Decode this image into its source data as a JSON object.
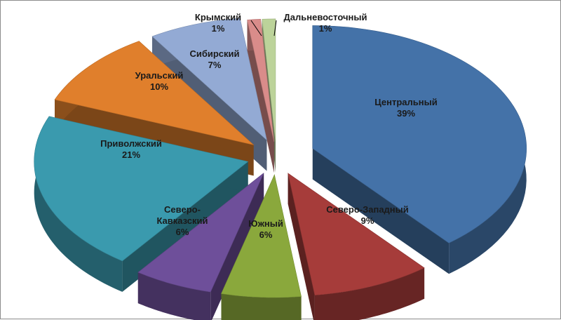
{
  "chart_data": {
    "type": "pie",
    "style": "3d-exploded",
    "title": "",
    "categories": [
      "Центральный",
      "Северо-Западный",
      "Южный",
      "Северо-Кавказский",
      "Приволжский",
      "Уральский",
      "Сибирский",
      "Крымский",
      "Дальневосточный"
    ],
    "values": [
      39,
      9,
      6,
      6,
      21,
      10,
      7,
      1,
      1
    ],
    "value_labels": [
      "39%",
      "9%",
      "6%",
      "6%",
      "21%",
      "10%",
      "7%",
      "1%",
      "1%"
    ],
    "label_lines": [
      [
        "Центральный",
        "39%"
      ],
      [
        "Северо-Западный",
        "9%"
      ],
      [
        "Южный",
        "6%"
      ],
      [
        "Северо-",
        "Кавказский",
        "6%"
      ],
      [
        "Приволжский",
        "21%"
      ],
      [
        "Уральский",
        "10%"
      ],
      [
        "Сибирский",
        "7%"
      ],
      [
        "Крымский",
        "1%"
      ],
      [
        "Дальневосточный",
        "1%"
      ]
    ],
    "colors": [
      "#4472a8",
      "#a63c3a",
      "#8aa83c",
      "#6e4f9a",
      "#3a9aae",
      "#e07f2c",
      "#93aad4",
      "#d98c8a",
      "#bcd39a"
    ],
    "legend": "none",
    "grid": false
  }
}
